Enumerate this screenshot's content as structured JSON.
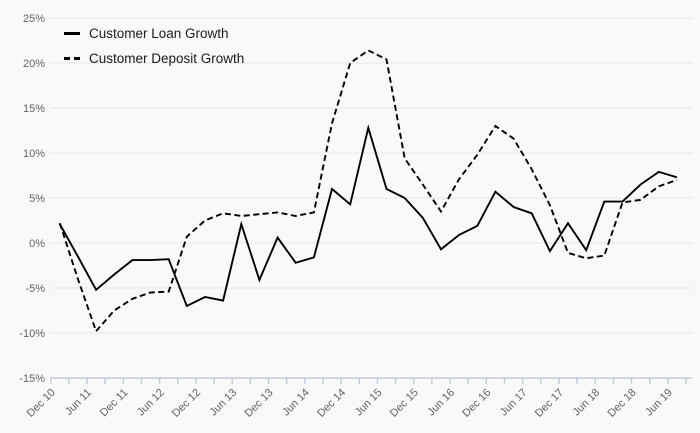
{
  "page": {
    "background_color": "#f9f9f9"
  },
  "legend": {
    "items": [
      {
        "label": "Customer Loan Growth",
        "style": "solid"
      },
      {
        "label": "Customer Deposit Growth",
        "style": "dashed"
      }
    ]
  },
  "chart_data": {
    "type": "line",
    "title": "",
    "xlabel": "",
    "ylabel": "",
    "x": [
      "Dec 10",
      "Mar 11",
      "Jun 11",
      "Sep 11",
      "Dec 11",
      "Mar 12",
      "Jun 12",
      "Sep 12",
      "Dec 12",
      "Mar 13",
      "Jun 13",
      "Sep 13",
      "Dec 13",
      "Mar 14",
      "Jun 14",
      "Sep 14",
      "Dec 14",
      "Mar 15",
      "Jun 15",
      "Sep 15",
      "Dec 15",
      "Mar 16",
      "Jun 16",
      "Sep 16",
      "Dec 16",
      "Mar 17",
      "Jun 17",
      "Sep 17",
      "Dec 17",
      "Mar 18",
      "Jun 18",
      "Sep 18",
      "Dec 18",
      "Mar 19",
      "Jun 19"
    ],
    "x_axis_tick_labels": [
      "Dec 10",
      "Jun 11",
      "Dec 11",
      "Jun 12",
      "Dec 12",
      "Jun 13",
      "Dec 13",
      "Jun 14",
      "Dec 14",
      "Jun 15",
      "Dec 15",
      "Jun 16",
      "Dec 16",
      "Jun 17",
      "Dec 17",
      "Jun 18",
      "Dec 18",
      "Jun 19"
    ],
    "series": [
      {
        "name": "Customer Loan Growth",
        "style": "solid",
        "values": [
          2.1,
          -1.5,
          -5.2,
          -3.5,
          -1.9,
          -1.9,
          -1.8,
          -7.0,
          -6.0,
          -6.4,
          2.1,
          -4.1,
          0.6,
          -2.2,
          -1.6,
          6.0,
          4.3,
          12.8,
          6.0,
          5.0,
          2.8,
          -0.7,
          0.9,
          1.9,
          5.7,
          4.0,
          3.3,
          -0.9,
          2.2,
          -0.8,
          4.6,
          4.6,
          6.5,
          7.9,
          7.3
        ]
      },
      {
        "name": "Customer Deposit Growth",
        "style": "dashed",
        "values": [
          2.2,
          -4.0,
          -9.8,
          -7.5,
          -6.2,
          -5.5,
          -5.4,
          0.7,
          2.5,
          3.3,
          3.0,
          3.2,
          3.4,
          3.0,
          3.4,
          13.3,
          20.0,
          21.4,
          20.4,
          9.4,
          6.5,
          3.5,
          7.1,
          9.8,
          13.0,
          11.6,
          8.2,
          4.2,
          -1.1,
          -1.7,
          -1.4,
          4.5,
          4.8,
          6.3,
          7.0
        ]
      }
    ],
    "y_tick_labels": [
      "25%",
      "20%",
      "15%",
      "10%",
      "5%",
      "0%",
      "-5%",
      "-10%",
      "-15%"
    ],
    "ylim": [
      -15,
      25
    ],
    "y_step": 5,
    "grid": "horizontal",
    "legend_position": "top-left",
    "x_tick_label_rotation_deg": -45,
    "colors": {
      "line": "#000000",
      "grid": "#e8e8e8",
      "axis": "#c2cade",
      "tick_label": "#636363",
      "background": "#f9f9f9"
    }
  }
}
